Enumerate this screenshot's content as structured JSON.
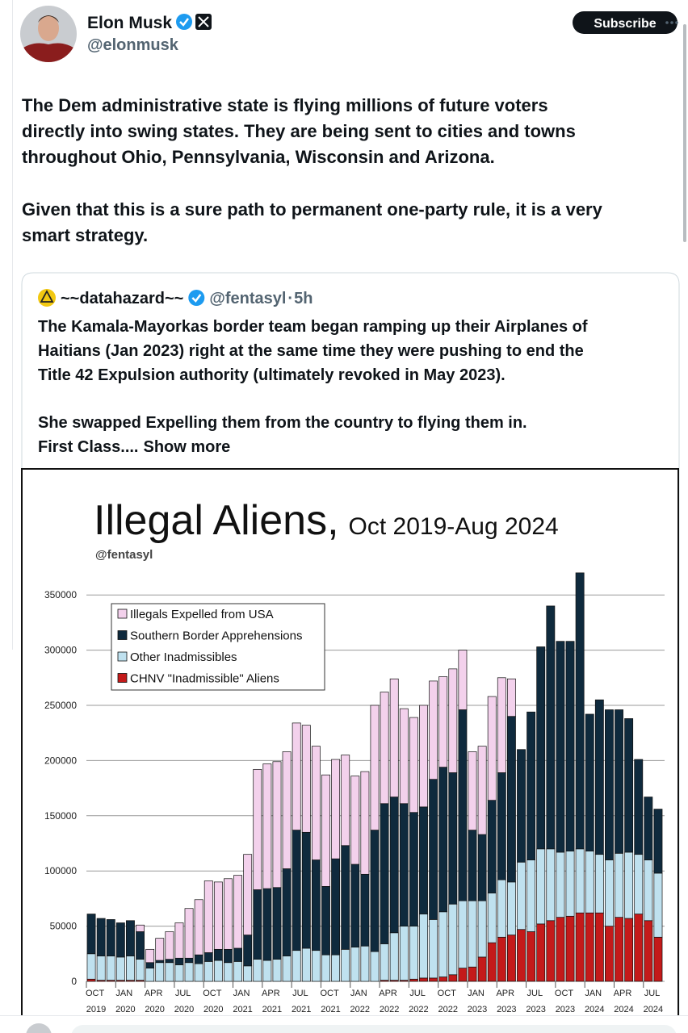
{
  "tweet": {
    "author": {
      "name": "Elon Musk",
      "handle": "@elonmusk"
    },
    "subscribe": "Subscribe",
    "text_lines": [
      "The Dem administrative state is flying millions of future voters",
      "directly into swing states. They are being sent to cities and towns",
      "throughout Ohio, Pennsylvania, Wisconsin and Arizona.",
      "Given that this is a sure path to permanent one-party rule, it is a very",
      "smart strategy."
    ],
    "quote": {
      "author": "~~datahazard~~",
      "handle": "@fentasyl",
      "separator": "·",
      "time": "5h",
      "text_lines": [
        "The Kamala-Mayorkas border team began ramping up their Airplanes of",
        "Haitians (Jan 2023) right at the same time they were pushing to end the",
        "Title 42 Expulsion authority (ultimately revoked in May 2023).",
        "She swapped Expelling them from the country to flying them in.",
        "First Class...."
      ],
      "show_more": "Show more"
    }
  },
  "chart_data": {
    "type": "bar",
    "stacked": true,
    "title": "Illegal Aliens,",
    "subtitle": "Oct 2019-Aug 2024",
    "credit": "@fentasyl",
    "categories": [
      "OCT 2019",
      null,
      null,
      "JAN 2020",
      null,
      null,
      "APR 2020",
      null,
      null,
      "JUL 2020",
      null,
      null,
      "OCT 2020",
      null,
      null,
      "JAN 2021",
      null,
      null,
      "APR 2021",
      null,
      null,
      "JUL 2021",
      null,
      null,
      "OCT 2021",
      null,
      null,
      "JAN 2022",
      null,
      null,
      "APR 2022",
      null,
      null,
      "JUL 2022",
      null,
      null,
      "OCT 2022",
      null,
      null,
      "JAN 2023",
      null,
      null,
      "APR 2023",
      null,
      null,
      "JUL 2023",
      null,
      null,
      "OCT 2023",
      null,
      null,
      "JAN 2024",
      null,
      null,
      "APR 2024",
      null,
      null,
      "JUL 2024",
      null
    ],
    "series": [
      {
        "name": "CHNV \"Inadmissible\" Aliens",
        "color": "#c41a1a",
        "values": [
          2000,
          1000,
          1000,
          1000,
          1000,
          1000,
          0,
          0,
          0,
          0,
          0,
          0,
          0,
          0,
          0,
          0,
          0,
          0,
          0,
          0,
          0,
          0,
          0,
          0,
          0,
          0,
          0,
          0,
          0,
          0,
          1000,
          1000,
          1000,
          2000,
          3000,
          3000,
          4000,
          6000,
          12000,
          13000,
          22000,
          35000,
          40000,
          42000,
          47000,
          45000,
          52000,
          55000,
          58000,
          59000,
          62000,
          62000,
          62000,
          50000,
          58000,
          57000,
          61000,
          55000,
          40000
        ]
      },
      {
        "name": "Other Inadmissibles",
        "color": "#bfe1ef",
        "values": [
          23000,
          22000,
          22000,
          21000,
          22000,
          19000,
          12000,
          17000,
          17000,
          15000,
          17000,
          16000,
          18000,
          19000,
          17000,
          18000,
          14000,
          20000,
          19000,
          20000,
          23000,
          28000,
          30000,
          28000,
          24000,
          24000,
          29000,
          31000,
          32000,
          27000,
          33000,
          43000,
          49000,
          48000,
          58000,
          53000,
          59000,
          64000,
          61000,
          60000,
          51000,
          45000,
          52000,
          48000,
          61000,
          65000,
          68000,
          65000,
          59000,
          59000,
          58000,
          56000,
          53000,
          60000,
          58000,
          60000,
          54000,
          55000,
          58000
        ]
      },
      {
        "name": "Southern Border Apprehensions",
        "color": "#0f2a3d",
        "values": [
          36000,
          34000,
          33000,
          31000,
          32000,
          25000,
          5000,
          2000,
          3000,
          6000,
          4000,
          8000,
          8000,
          10000,
          12000,
          12000,
          28000,
          63000,
          65000,
          65000,
          79000,
          109000,
          105000,
          82000,
          62000,
          87000,
          94000,
          75000,
          65000,
          110000,
          127000,
          123000,
          111000,
          103000,
          97000,
          127000,
          131000,
          119000,
          173000,
          64000,
          60000,
          84000,
          97000,
          150000,
          102000,
          134000,
          183000,
          220000,
          191000,
          190000,
          250000,
          124000,
          140000,
          136000,
          130000,
          121000,
          86000,
          57000,
          58000
        ]
      },
      {
        "name": "Illegals Expelled from USA",
        "color": "#f3d1ec",
        "values": [
          0,
          0,
          0,
          0,
          0,
          6000,
          12000,
          20000,
          25000,
          32000,
          45000,
          50000,
          65000,
          61000,
          64000,
          66000,
          73000,
          109000,
          113000,
          114000,
          106000,
          97000,
          97000,
          103000,
          101000,
          90000,
          82000,
          80000,
          93000,
          113000,
          101000,
          107000,
          86000,
          86000,
          92000,
          89000,
          82000,
          94000,
          54000,
          71000,
          80000,
          94000,
          86000,
          34000,
          0,
          0,
          0,
          0,
          0,
          0,
          0,
          0,
          0,
          0,
          0,
          0,
          0,
          0,
          0
        ]
      }
    ],
    "ylim": [
      0,
      375000
    ],
    "yticks": [
      0,
      50000,
      100000,
      150000,
      200000,
      250000,
      300000,
      350000
    ],
    "grid": true,
    "legend": "top-left"
  }
}
